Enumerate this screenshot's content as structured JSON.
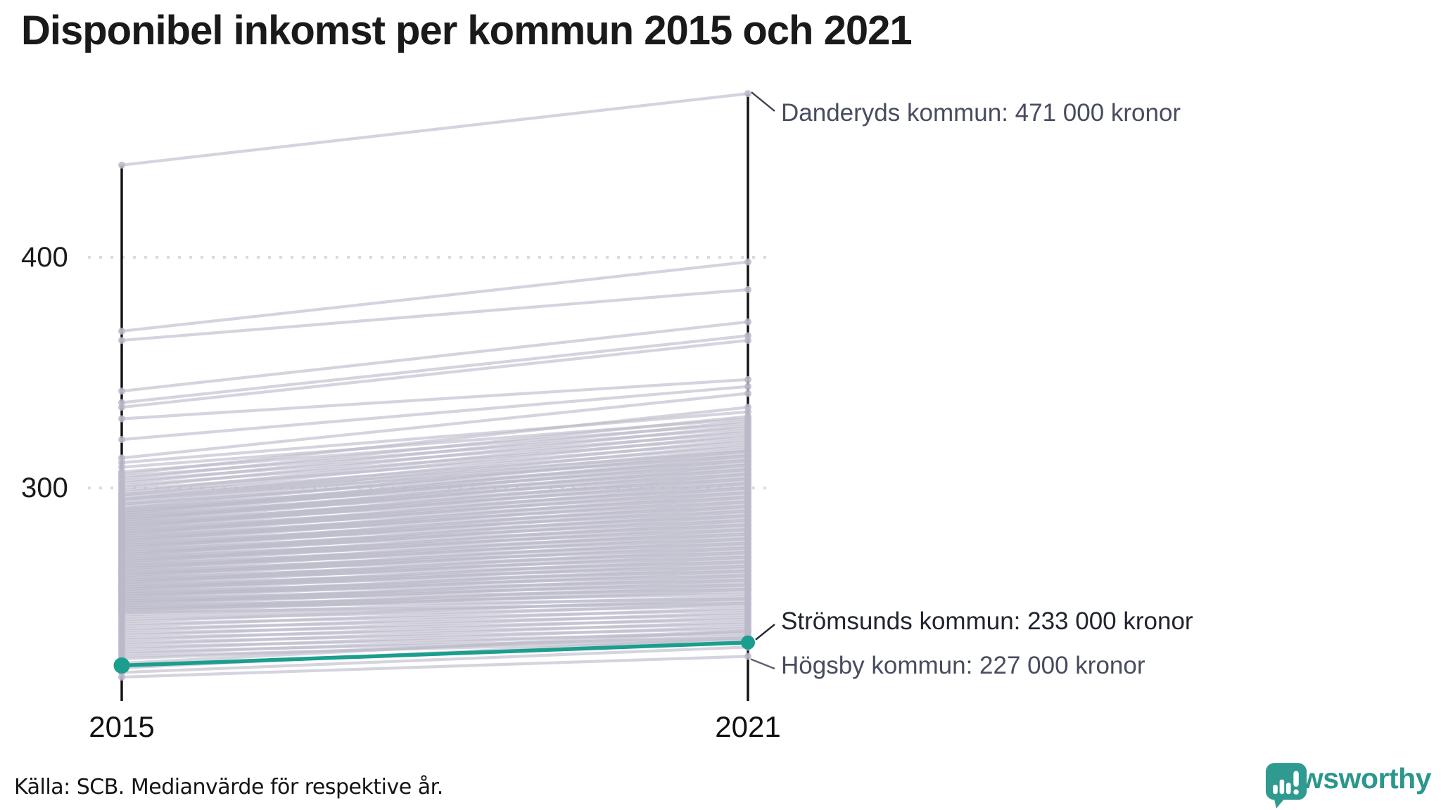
{
  "title": "Disponibel inkomst per kommun 2015 och 2021",
  "source_note": "Källa: SCB. Medianvärde för respektive år.",
  "logo": {
    "text": "Newsworthy",
    "icon": "newsworthy-speech-bubble-bar-chart-icon",
    "color": "#2f9a8f"
  },
  "annotations": {
    "top": {
      "text": "Danderyds kommun: 471 000 kronor"
    },
    "highlight": {
      "text": "Strömsunds kommun: 233 000 kronor"
    },
    "bottom": {
      "text": "Högsby kommun: 227 000 kronor"
    }
  },
  "axis": {
    "x_labels": [
      "2015",
      "2021"
    ],
    "y_tick_labels": [
      "400",
      "300"
    ]
  },
  "chart_data": {
    "type": "line",
    "subtype": "slopegraph",
    "title": "Disponibel inkomst per kommun 2015 och 2021",
    "x": [
      2015,
      2021
    ],
    "x_labels": [
      "2015",
      "2021"
    ],
    "y_ticks": [
      400,
      300
    ],
    "ylim": [
      212,
      480
    ],
    "unit": "tusen kronor",
    "grid": "dotted horizontal gridlines at 300 and 400",
    "legend": "none",
    "line_color": "#bcb9ca",
    "axis_color": "#111111",
    "highlight_color": "#1b9e8e",
    "labeled_points": [
      {
        "name": "Danderyds kommun",
        "year": 2021,
        "value": 471
      },
      {
        "name": "Strömsunds kommun",
        "year": 2021,
        "value": 233
      },
      {
        "name": "Högsby kommun",
        "year": 2021,
        "value": 227
      }
    ],
    "highlight": {
      "name": "Strömsunds kommun",
      "values": [
        223,
        233
      ]
    },
    "bottom_series_name": "Högsby kommun",
    "series": [
      [
        440,
        471
      ],
      [
        368,
        398
      ],
      [
        364,
        386
      ],
      [
        342,
        372
      ],
      [
        337,
        366
      ],
      [
        335,
        364
      ],
      [
        330,
        347
      ],
      [
        321,
        344
      ],
      [
        313,
        341
      ],
      [
        311,
        333
      ],
      [
        309,
        330
      ],
      [
        307,
        328
      ],
      [
        306,
        335
      ],
      [
        305,
        326
      ],
      [
        304,
        331
      ],
      [
        303,
        324
      ],
      [
        302,
        329
      ],
      [
        301,
        322
      ],
      [
        300,
        327
      ],
      [
        299,
        320
      ],
      [
        298,
        325
      ],
      [
        297,
        318
      ],
      [
        297,
        323
      ],
      [
        296,
        316
      ],
      [
        295,
        321
      ],
      [
        295,
        314
      ],
      [
        294,
        319
      ],
      [
        293,
        312
      ],
      [
        293,
        317
      ],
      [
        292,
        315
      ],
      [
        291,
        310
      ],
      [
        291,
        316
      ],
      [
        290,
        313
      ],
      [
        290,
        308
      ],
      [
        289,
        314
      ],
      [
        289,
        311
      ],
      [
        288,
        306
      ],
      [
        288,
        312
      ],
      [
        287,
        309
      ],
      [
        287,
        304
      ],
      [
        286,
        310
      ],
      [
        286,
        307
      ],
      [
        285,
        302
      ],
      [
        285,
        308
      ],
      [
        284,
        305
      ],
      [
        284,
        300
      ],
      [
        283,
        306
      ],
      [
        283,
        303
      ],
      [
        282,
        298
      ],
      [
        282,
        304
      ],
      [
        281,
        301
      ],
      [
        281,
        296
      ],
      [
        280,
        302
      ],
      [
        280,
        299
      ],
      [
        279,
        294
      ],
      [
        279,
        300
      ],
      [
        278,
        297
      ],
      [
        278,
        292
      ],
      [
        277,
        298
      ],
      [
        277,
        295
      ],
      [
        276,
        290
      ],
      [
        276,
        296
      ],
      [
        275,
        293
      ],
      [
        275,
        288
      ],
      [
        274,
        294
      ],
      [
        274,
        291
      ],
      [
        273,
        286
      ],
      [
        273,
        292
      ],
      [
        272,
        289
      ],
      [
        272,
        284
      ],
      [
        271,
        290
      ],
      [
        271,
        287
      ],
      [
        270,
        282
      ],
      [
        270,
        288
      ],
      [
        269,
        285
      ],
      [
        269,
        280
      ],
      [
        268,
        286
      ],
      [
        268,
        283
      ],
      [
        267,
        278
      ],
      [
        267,
        284
      ],
      [
        266,
        281
      ],
      [
        266,
        276
      ],
      [
        265,
        282
      ],
      [
        265,
        279
      ],
      [
        264,
        274
      ],
      [
        264,
        280
      ],
      [
        263,
        277
      ],
      [
        263,
        272
      ],
      [
        262,
        278
      ],
      [
        262,
        275
      ],
      [
        261,
        270
      ],
      [
        261,
        276
      ],
      [
        260,
        273
      ],
      [
        260,
        268
      ],
      [
        259,
        274
      ],
      [
        259,
        271
      ],
      [
        258,
        266
      ],
      [
        258,
        272
      ],
      [
        257,
        269
      ],
      [
        257,
        264
      ],
      [
        256,
        270
      ],
      [
        256,
        267
      ],
      [
        255,
        262
      ],
      [
        255,
        268
      ],
      [
        254,
        265
      ],
      [
        254,
        260
      ],
      [
        253,
        266
      ],
      [
        253,
        263
      ],
      [
        252,
        258
      ],
      [
        252,
        264
      ],
      [
        251,
        261
      ],
      [
        251,
        256
      ],
      [
        250,
        262
      ],
      [
        250,
        259
      ],
      [
        249,
        254
      ],
      [
        249,
        260
      ],
      [
        248,
        257
      ],
      [
        248,
        252
      ],
      [
        247,
        258
      ],
      [
        247,
        255
      ],
      [
        246,
        250
      ],
      [
        246,
        256
      ],
      [
        245,
        253
      ],
      [
        244,
        251
      ],
      [
        243,
        249
      ],
      [
        242,
        252
      ],
      [
        241,
        247
      ],
      [
        240,
        250
      ],
      [
        239,
        245
      ],
      [
        238,
        248
      ],
      [
        237,
        243
      ],
      [
        236,
        246
      ],
      [
        235,
        241
      ],
      [
        234,
        244
      ],
      [
        233,
        239
      ],
      [
        232,
        242
      ],
      [
        231,
        237
      ],
      [
        230,
        240
      ],
      [
        229,
        235
      ],
      [
        228,
        238
      ],
      [
        227,
        234
      ],
      [
        226,
        236
      ],
      [
        224,
        238
      ],
      [
        222,
        235
      ],
      [
        220,
        231
      ],
      [
        218,
        227
      ]
    ]
  }
}
